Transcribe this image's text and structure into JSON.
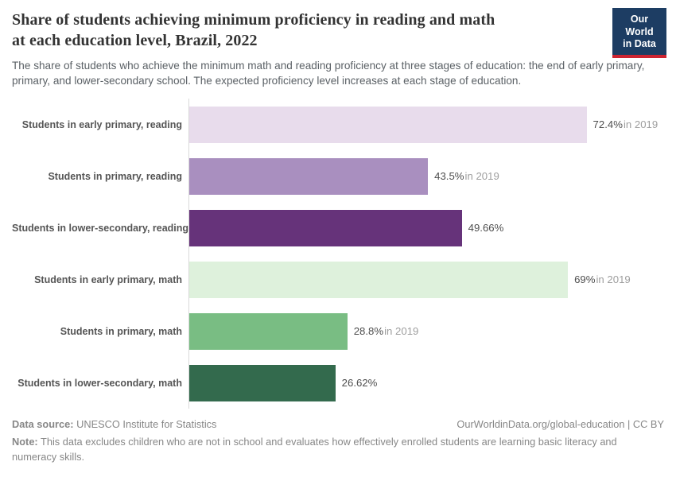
{
  "header": {
    "title_line1": "Share of students achieving minimum proficiency in reading and math",
    "title_line2": "at each education level, Brazil, 2022",
    "subtitle": "The share of students who achieve the minimum math and reading proficiency at three stages of education: the end of early primary, primary, and lower-secondary school. The expected proficiency level increases at each stage of education.",
    "logo": {
      "line1": "Our World",
      "line2": "in Data",
      "bg_color": "#1d3d63",
      "accent_color": "#cd2431"
    }
  },
  "chart_data": {
    "type": "bar",
    "orientation": "horizontal",
    "title": "Share of students achieving minimum proficiency in reading and math at each education level, Brazil, 2022",
    "xlabel": "",
    "ylabel": "",
    "xlim": [
      0,
      80
    ],
    "grid": false,
    "legend": false,
    "categories": [
      "Students in early primary, reading",
      "Students in primary, reading",
      "Students in lower-secondary, reading",
      "Students in early primary, math",
      "Students in primary, math",
      "Students in lower-secondary, math"
    ],
    "values": [
      72.4,
      43.5,
      49.66,
      69,
      28.8,
      26.62
    ],
    "rows": [
      {
        "label": "Students in early primary, reading",
        "value": 72.4,
        "display_value": "72.4%",
        "suffix": "in 2019",
        "color": "#e8dcec"
      },
      {
        "label": "Students in primary, reading",
        "value": 43.5,
        "display_value": "43.5%",
        "suffix": "in 2019",
        "color": "#a98fbf"
      },
      {
        "label": "Students in lower-secondary, reading",
        "value": 49.66,
        "display_value": "49.66%",
        "suffix": "",
        "color": "#66337a"
      },
      {
        "label": "Students in early primary, math",
        "value": 69,
        "display_value": "69%",
        "suffix": "in 2019",
        "color": "#def1dc"
      },
      {
        "label": "Students in primary, math",
        "value": 28.8,
        "display_value": "28.8%",
        "suffix": "in 2019",
        "color": "#79bd83"
      },
      {
        "label": "Students in lower-secondary, math",
        "value": 26.62,
        "display_value": "26.62%",
        "suffix": "",
        "color": "#336a4d"
      }
    ]
  },
  "footer": {
    "data_source_label": "Data source:",
    "data_source": "UNESCO Institute for Statistics",
    "attribution": "OurWorldinData.org/global-education | CC BY",
    "note_label": "Note:",
    "note": "This data excludes children who are not in school and evaluates how effectively enrolled students are learning basic literacy and numeracy skills."
  }
}
